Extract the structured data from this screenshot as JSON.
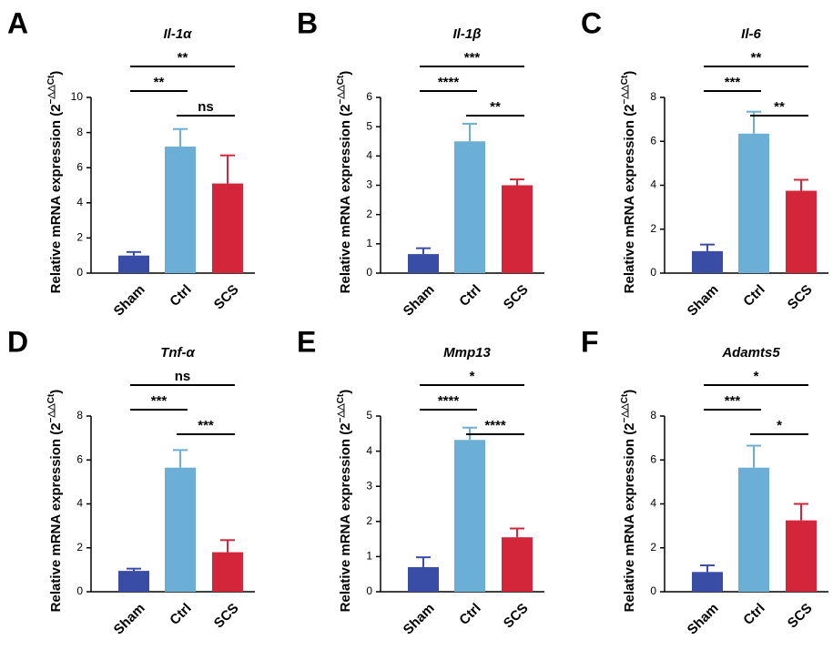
{
  "chart_data": [
    {
      "type": "bar",
      "panel": "A",
      "title": "Il-1α",
      "ylabel": "Relative mRNA expression (2",
      "ylabel_sup": "−△△Ct",
      "ylabel_end": ")",
      "categories": [
        "Sham",
        "Ctrl",
        "SCS"
      ],
      "values": [
        1.0,
        7.2,
        5.1
      ],
      "errors": [
        0.2,
        1.0,
        1.6
      ],
      "colors": [
        "#3a4da6",
        "#6bafd6",
        "#d3263a"
      ],
      "ylim": [
        0,
        10
      ],
      "yticks": [
        0,
        2,
        4,
        6,
        8,
        10
      ],
      "brackets": [
        {
          "from": 0,
          "to": 2,
          "label": "**"
        },
        {
          "from": 0,
          "to": 1,
          "label": "**"
        },
        {
          "from": 1,
          "to": 2,
          "label": "ns"
        }
      ]
    },
    {
      "type": "bar",
      "panel": "B",
      "title": "Il-1β",
      "ylabel": "Relative mRNA expression (2",
      "ylabel_sup": "−△△Ct",
      "ylabel_end": ")",
      "categories": [
        "Sham",
        "Ctrl",
        "SCS"
      ],
      "values": [
        0.65,
        4.5,
        3.0
      ],
      "errors": [
        0.2,
        0.6,
        0.2
      ],
      "colors": [
        "#3a4da6",
        "#6bafd6",
        "#d3263a"
      ],
      "ylim": [
        0,
        6
      ],
      "yticks": [
        0,
        1,
        2,
        3,
        4,
        5,
        6
      ],
      "brackets": [
        {
          "from": 0,
          "to": 2,
          "label": "***"
        },
        {
          "from": 0,
          "to": 1,
          "label": "****"
        },
        {
          "from": 1,
          "to": 2,
          "label": "**"
        }
      ]
    },
    {
      "type": "bar",
      "panel": "C",
      "title": "Il-6",
      "ylabel": "Relative mRNA expression (2",
      "ylabel_sup": "−△△Ct",
      "ylabel_end": ")",
      "categories": [
        "Sham",
        "Ctrl",
        "SCS"
      ],
      "values": [
        1.0,
        6.35,
        3.75
      ],
      "errors": [
        0.3,
        1.0,
        0.5
      ],
      "colors": [
        "#3a4da6",
        "#6bafd6",
        "#d3263a"
      ],
      "ylim": [
        0,
        8
      ],
      "yticks": [
        0,
        2,
        4,
        6,
        8
      ],
      "brackets": [
        {
          "from": 0,
          "to": 2,
          "label": "**"
        },
        {
          "from": 0,
          "to": 1,
          "label": "***"
        },
        {
          "from": 1,
          "to": 2,
          "label": "**"
        }
      ]
    },
    {
      "type": "bar",
      "panel": "D",
      "title": "Tnf-α",
      "ylabel": "Relative mRNA expression (2",
      "ylabel_sup": "−△△Ct",
      "ylabel_end": ")",
      "categories": [
        "Sham",
        "Ctrl",
        "SCS"
      ],
      "values": [
        0.95,
        5.65,
        1.8
      ],
      "errors": [
        0.1,
        0.8,
        0.55
      ],
      "colors": [
        "#3a4da6",
        "#6bafd6",
        "#d3263a"
      ],
      "ylim": [
        0,
        8
      ],
      "yticks": [
        0,
        2,
        4,
        6,
        8
      ],
      "brackets": [
        {
          "from": 0,
          "to": 2,
          "label": "ns"
        },
        {
          "from": 0,
          "to": 1,
          "label": "***"
        },
        {
          "from": 1,
          "to": 2,
          "label": "***"
        }
      ]
    },
    {
      "type": "bar",
      "panel": "E",
      "title": "Mmp13",
      "ylabel": "Relative mRNA expression (2",
      "ylabel_sup": "−△△Ct",
      "ylabel_end": ")",
      "categories": [
        "Sham",
        "Ctrl",
        "SCS"
      ],
      "values": [
        0.7,
        4.32,
        1.55
      ],
      "errors": [
        0.28,
        0.35,
        0.25
      ],
      "colors": [
        "#3a4da6",
        "#6bafd6",
        "#d3263a"
      ],
      "ylim": [
        0,
        5
      ],
      "yticks": [
        0,
        1,
        2,
        3,
        4,
        5
      ],
      "brackets": [
        {
          "from": 0,
          "to": 2,
          "label": "*"
        },
        {
          "from": 0,
          "to": 1,
          "label": "****"
        },
        {
          "from": 1,
          "to": 2,
          "label": "****"
        }
      ]
    },
    {
      "type": "bar",
      "panel": "F",
      "title": "Adamts5",
      "ylabel": "Relative mRNA expression (2",
      "ylabel_sup": "−△△Ct",
      "ylabel_end": ")",
      "categories": [
        "Sham",
        "Ctrl",
        "SCS"
      ],
      "values": [
        0.9,
        5.65,
        3.25
      ],
      "errors": [
        0.3,
        1.0,
        0.75
      ],
      "colors": [
        "#3a4da6",
        "#6bafd6",
        "#d3263a"
      ],
      "ylim": [
        0,
        8
      ],
      "yticks": [
        0,
        2,
        4,
        6,
        8
      ],
      "brackets": [
        {
          "from": 0,
          "to": 2,
          "label": "*"
        },
        {
          "from": 0,
          "to": 1,
          "label": "***"
        },
        {
          "from": 1,
          "to": 2,
          "label": "*"
        }
      ]
    }
  ]
}
